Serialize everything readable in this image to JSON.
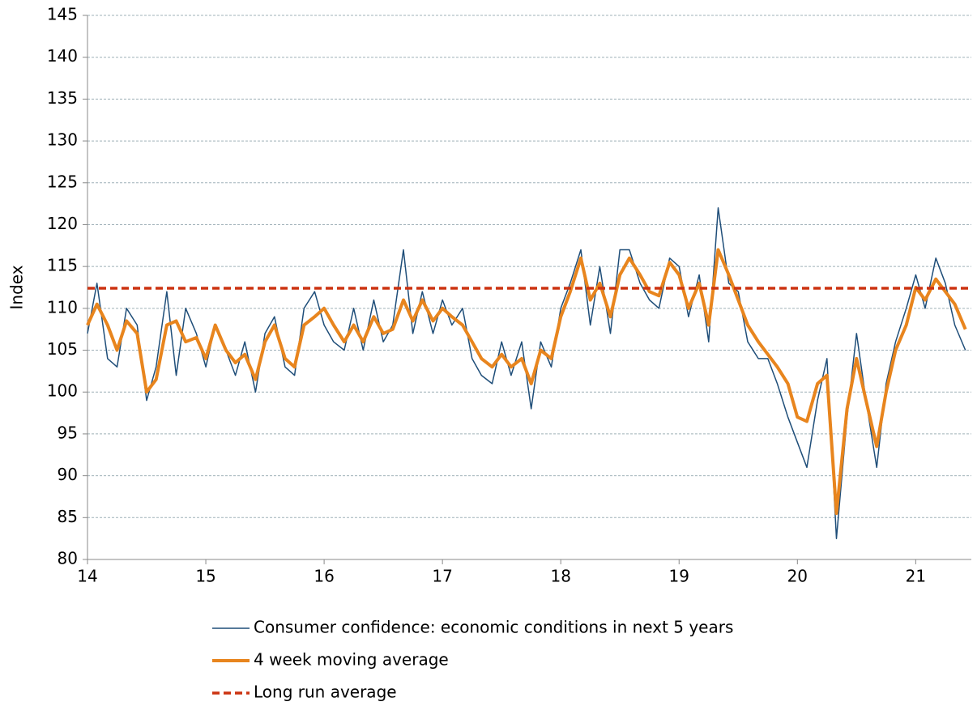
{
  "chart_data": {
    "type": "line",
    "y_label": "Index",
    "xlim": [
      14,
      21.47
    ],
    "xticks": [
      14,
      15,
      16,
      17,
      18,
      19,
      20,
      21
    ],
    "ylim": [
      80,
      145
    ],
    "yticks": [
      80,
      85,
      90,
      95,
      100,
      105,
      110,
      115,
      120,
      125,
      130,
      135,
      140,
      145
    ],
    "grid": true,
    "legend": "bottom",
    "x": [
      14,
      14.08,
      14.17,
      14.25,
      14.33,
      14.42,
      14.5,
      14.58,
      14.67,
      14.75,
      14.83,
      14.92,
      15,
      15.08,
      15.17,
      15.25,
      15.33,
      15.42,
      15.5,
      15.58,
      15.67,
      15.75,
      15.83,
      15.92,
      16,
      16.08,
      16.17,
      16.25,
      16.33,
      16.42,
      16.5,
      16.58,
      16.67,
      16.75,
      16.83,
      16.92,
      17,
      17.08,
      17.17,
      17.25,
      17.33,
      17.42,
      17.5,
      17.58,
      17.67,
      17.75,
      17.83,
      17.92,
      18,
      18.08,
      18.17,
      18.25,
      18.33,
      18.42,
      18.5,
      18.58,
      18.67,
      18.75,
      18.83,
      18.92,
      19,
      19.08,
      19.17,
      19.25,
      19.33,
      19.42,
      19.5,
      19.58,
      19.67,
      19.75,
      19.83,
      19.92,
      20,
      20.08,
      20.17,
      20.25,
      20.33,
      20.42,
      20.5,
      20.58,
      20.67,
      20.75,
      20.83,
      20.92,
      21,
      21.08,
      21.17,
      21.25,
      21.33,
      21.42
    ],
    "series": [
      {
        "name": "Consumer confidence: economic conditions in next 5 years",
        "color": "#1f4e79",
        "width": 1.5,
        "values": [
          107,
          113,
          104,
          103,
          110,
          108,
          99,
          103,
          112,
          102,
          110,
          107,
          103,
          108,
          105,
          102,
          106,
          100,
          107,
          109,
          103,
          102,
          110,
          112,
          108,
          106,
          105,
          110,
          105,
          111,
          106,
          108,
          117,
          107,
          112,
          107,
          111,
          108,
          110,
          104,
          102,
          101,
          106,
          102,
          106,
          98,
          106,
          103,
          110,
          113,
          117,
          108,
          115,
          107,
          117,
          117,
          113,
          111,
          110,
          116,
          115,
          109,
          114,
          106,
          122,
          113,
          112,
          106,
          104,
          104,
          101,
          97,
          94,
          91,
          99,
          104,
          82.5,
          97,
          107,
          99,
          91,
          101,
          106,
          110,
          114,
          110,
          116,
          113,
          108,
          105
        ]
      },
      {
        "name": "4 week moving average",
        "color": "#e8851e",
        "width": 4,
        "values": [
          108,
          110.5,
          108,
          105,
          108.5,
          107,
          100,
          101.5,
          108,
          108.5,
          106,
          106.5,
          104,
          108,
          105,
          103.5,
          104.5,
          101.5,
          106,
          108,
          104,
          103,
          108,
          109,
          110,
          108,
          106,
          108,
          106,
          109,
          107,
          107.5,
          111,
          108.5,
          111,
          108.5,
          110,
          109,
          108,
          106,
          104,
          103,
          104.5,
          103,
          104,
          101,
          105,
          104,
          109,
          112,
          116,
          111,
          113,
          109,
          114,
          116,
          114,
          112,
          111.5,
          115.5,
          114,
          110,
          113,
          108,
          117,
          114,
          111,
          108,
          106,
          104.5,
          103,
          101,
          97,
          96.5,
          101,
          102,
          85.5,
          98,
          104,
          99,
          93.5,
          100,
          105,
          108,
          112.5,
          111,
          113.5,
          112,
          110.5,
          107.5
        ]
      }
    ],
    "long_run_average": {
      "name": "Long run average",
      "color": "#cc3311",
      "value": 112.4
    }
  }
}
